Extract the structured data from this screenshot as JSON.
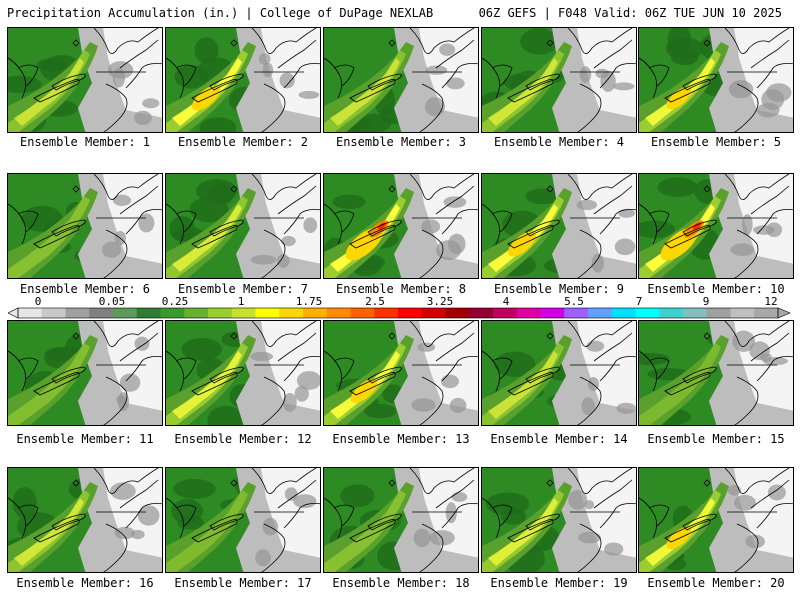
{
  "header": {
    "title": "Precipitation Accumulation (in.) | College of DuPage NEXLAB",
    "run_info": "06Z GEFS | F048 Valid: 06Z TUE JUN 10 2025"
  },
  "member_caption_prefix": "Ensemble Member: ",
  "members": [
    {
      "id": 1,
      "intensity": 0.55
    },
    {
      "id": 2,
      "intensity": 0.95
    },
    {
      "id": 3,
      "intensity": 0.55
    },
    {
      "id": 4,
      "intensity": 0.6
    },
    {
      "id": 5,
      "intensity": 0.85
    },
    {
      "id": 6,
      "intensity": 0.5
    },
    {
      "id": 7,
      "intensity": 0.65
    },
    {
      "id": 8,
      "intensity": 1.25
    },
    {
      "id": 9,
      "intensity": 0.95
    },
    {
      "id": 10,
      "intensity": 1.25
    },
    {
      "id": 11,
      "intensity": 0.45
    },
    {
      "id": 12,
      "intensity": 0.75
    },
    {
      "id": 13,
      "intensity": 0.9
    },
    {
      "id": 14,
      "intensity": 0.55
    },
    {
      "id": 15,
      "intensity": 0.35
    },
    {
      "id": 16,
      "intensity": 0.6
    },
    {
      "id": 17,
      "intensity": 0.4
    },
    {
      "id": 18,
      "intensity": 0.5
    },
    {
      "id": 19,
      "intensity": 0.7
    },
    {
      "id": 20,
      "intensity": 0.85
    }
  ],
  "colorbar": {
    "unit": "in.",
    "labels": [
      "0",
      "0.05",
      "0.25",
      "1",
      "1.75",
      "2.5",
      "3.25",
      "4",
      "5.5",
      "7",
      "9",
      "12"
    ],
    "colors": [
      "#e6e6e6",
      "#c8c8c8",
      "#a0a0a0",
      "#808080",
      "#5a9a5a",
      "#2e7d32",
      "#3a9a2a",
      "#66b032",
      "#9acd32",
      "#c8e032",
      "#ffff00",
      "#ffd700",
      "#ffb000",
      "#ff8c00",
      "#ff6000",
      "#ff3000",
      "#ff0000",
      "#d40000",
      "#a00000",
      "#900030",
      "#c00060",
      "#e000a0",
      "#d000e0",
      "#a060ff",
      "#60a0ff",
      "#00e0ff",
      "#00ffff",
      "#40d0d0",
      "#80c0c0",
      "#a0a0a0",
      "#c0c0c0",
      "#a8a8a8"
    ]
  },
  "map_colors": {
    "dry_light": "#f4f4f4",
    "dry_gray": "#bdbdbd",
    "dry_dark": "#969696",
    "light_green": "#5aa02c",
    "green": "#2e8b23",
    "dark_green": "#1f6b1a",
    "lime": "#9acd32",
    "yellow": "#ffff3c",
    "gold": "#ffd700",
    "orange": "#ff8c00",
    "red": "#ff2a00",
    "borders": "#000000"
  }
}
